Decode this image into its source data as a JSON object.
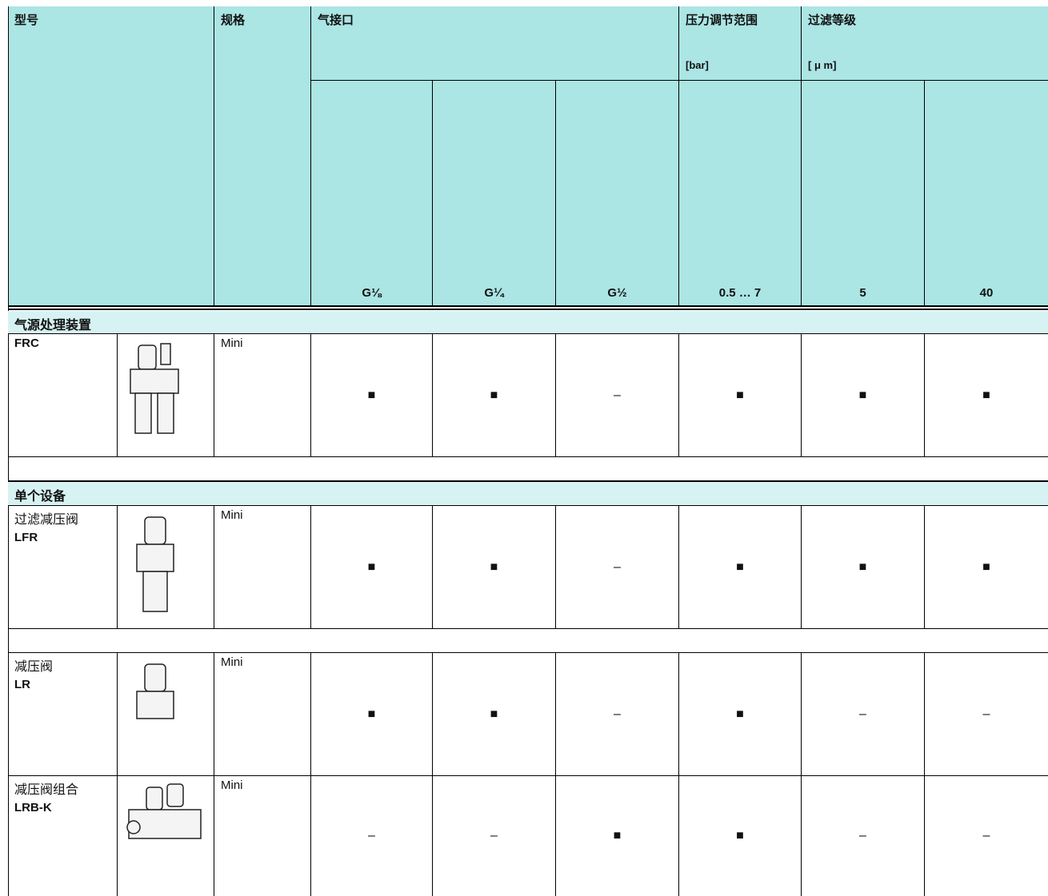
{
  "header": {
    "model": "型号",
    "spec": "规格",
    "port": "气接口",
    "pressure": "压力调节范围",
    "pressure_unit": "[bar]",
    "filter": "过滤等级",
    "filter_unit": "[ μ m]",
    "columns": [
      "G⅛",
      "G¼",
      "G½",
      "0.5 … 7",
      "5",
      "40"
    ]
  },
  "sections": [
    {
      "title": "气源处理装置",
      "rows": [
        {
          "model": "FRC",
          "spec": "Mini",
          "cells": [
            "■",
            "■",
            "–",
            "■",
            "■",
            "■"
          ]
        }
      ]
    },
    {
      "title": "单个设备",
      "rows": [
        {
          "name": "过滤减压阀",
          "model": "LFR",
          "spec": "Mini",
          "cells": [
            "■",
            "■",
            "–",
            "■",
            "■",
            "■"
          ]
        },
        {
          "name": "减压阀",
          "model": "LR",
          "spec": "Mini",
          "cells": [
            "■",
            "■",
            "–",
            "■",
            "–",
            "–"
          ]
        },
        {
          "name": "减压阀组合",
          "model": "LRB-K",
          "spec": "Mini",
          "cells": [
            "–",
            "–",
            "■",
            "■",
            "–",
            "–"
          ]
        }
      ]
    }
  ]
}
